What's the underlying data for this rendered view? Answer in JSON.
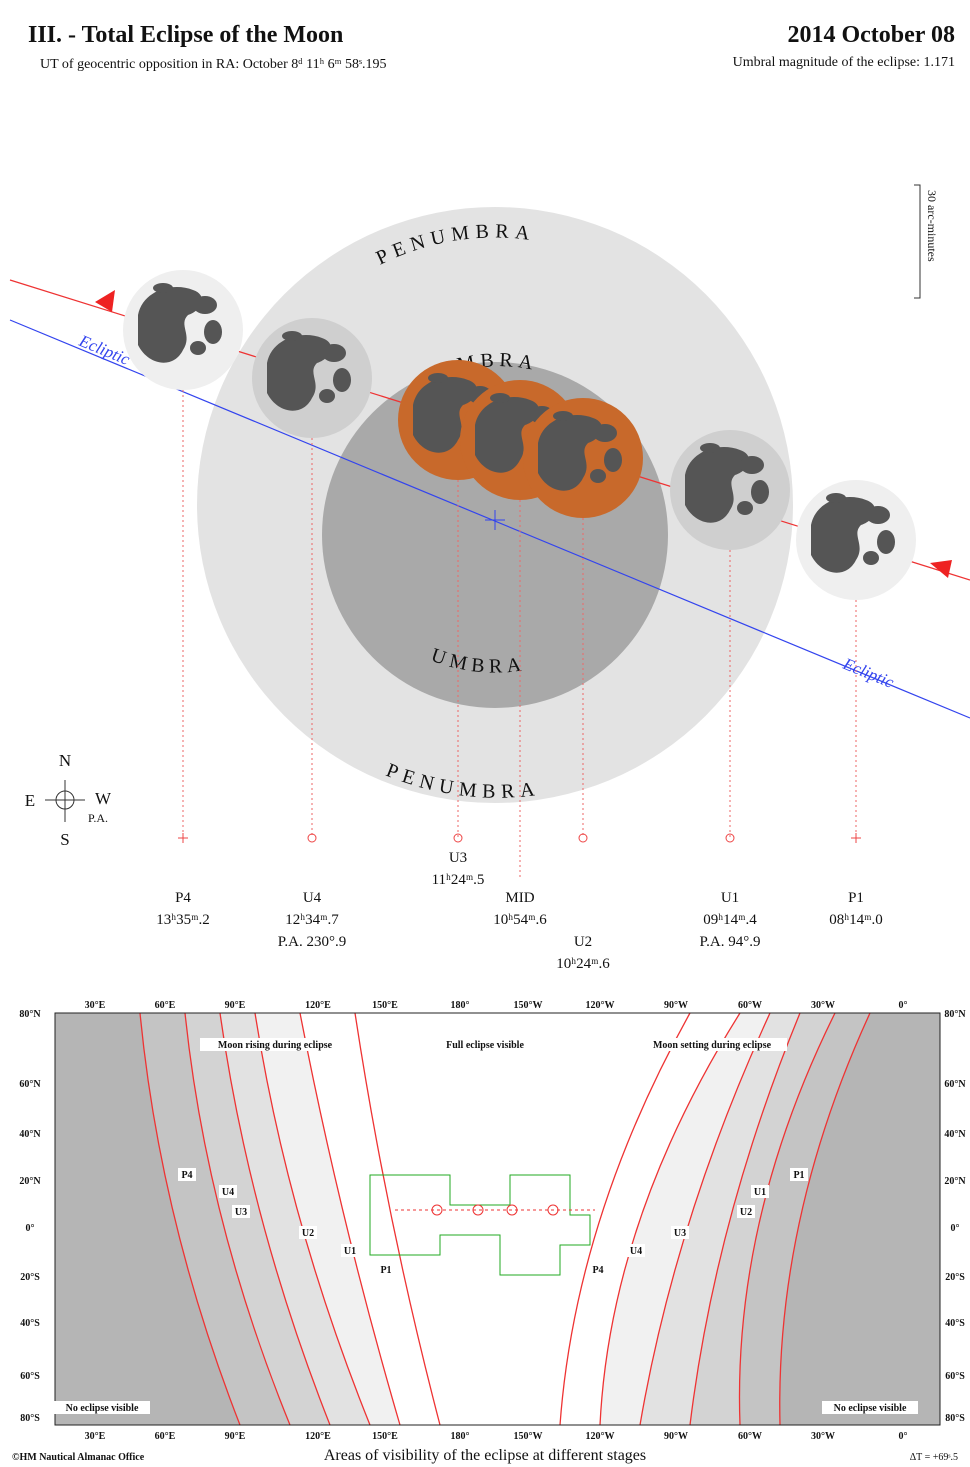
{
  "header": {
    "title": "III. - Total Eclipse of the Moon",
    "date": "2014 October 08",
    "subtitle": "UT of geocentric opposition in RA: October 8ᵈ 11ʰ 6ᵐ 58ˢ.195",
    "magnitude": "Umbral magnitude of the eclipse: 1.171"
  },
  "diagram": {
    "penumbra_top": "PENUMBRA",
    "penumbra_bottom": "PENUMBRA",
    "umbra_top": "UMBRA",
    "umbra_bottom": "UMBRA",
    "ecliptic_left": "Ecliptic",
    "ecliptic_right": "Ecliptic",
    "scale": "30 arc-minutes",
    "compass": {
      "n": "N",
      "s": "S",
      "e": "E",
      "w": "W",
      "pa": "P.A."
    },
    "contacts": [
      {
        "label": "P4",
        "time": "13ʰ35ᵐ.2"
      },
      {
        "label": "U4",
        "time": "12ʰ34ᵐ.7",
        "pa": "P.A. 230°.9"
      },
      {
        "label": "U3",
        "time": "11ʰ24ᵐ.5"
      },
      {
        "label": "MID",
        "time": "10ʰ54ᵐ.6"
      },
      {
        "label": "U2",
        "time": "10ʰ24ᵐ.6"
      },
      {
        "label": "U1",
        "time": "09ʰ14ᵐ.4",
        "pa": "P.A. 94°.9"
      },
      {
        "label": "P1",
        "time": "08ʰ14ᵐ.0"
      }
    ]
  },
  "map": {
    "longitudes": [
      "30°E",
      "60°E",
      "90°E",
      "120°E",
      "150°E",
      "180°",
      "150°W",
      "120°W",
      "90°W",
      "60°W",
      "30°W",
      "0°"
    ],
    "latitudes": [
      "80°N",
      "60°N",
      "40°N",
      "20°N",
      "0°",
      "20°S",
      "40°S",
      "60°S",
      "80°S"
    ],
    "regions": [
      "Moon rising during eclipse",
      "Full eclipse visible",
      "Moon setting during eclipse",
      "No eclipse visible",
      "No eclipse visible"
    ],
    "stages": [
      "P4",
      "U4",
      "U3",
      "U2",
      "U1",
      "P1",
      "P4",
      "U4",
      "U3",
      "U2",
      "U1",
      "P1"
    ],
    "caption": "Areas of visibility of the eclipse at different stages",
    "credit": "©HM Nautical Almanac Office",
    "delta_t": "ΔT = +69ˢ.5"
  }
}
